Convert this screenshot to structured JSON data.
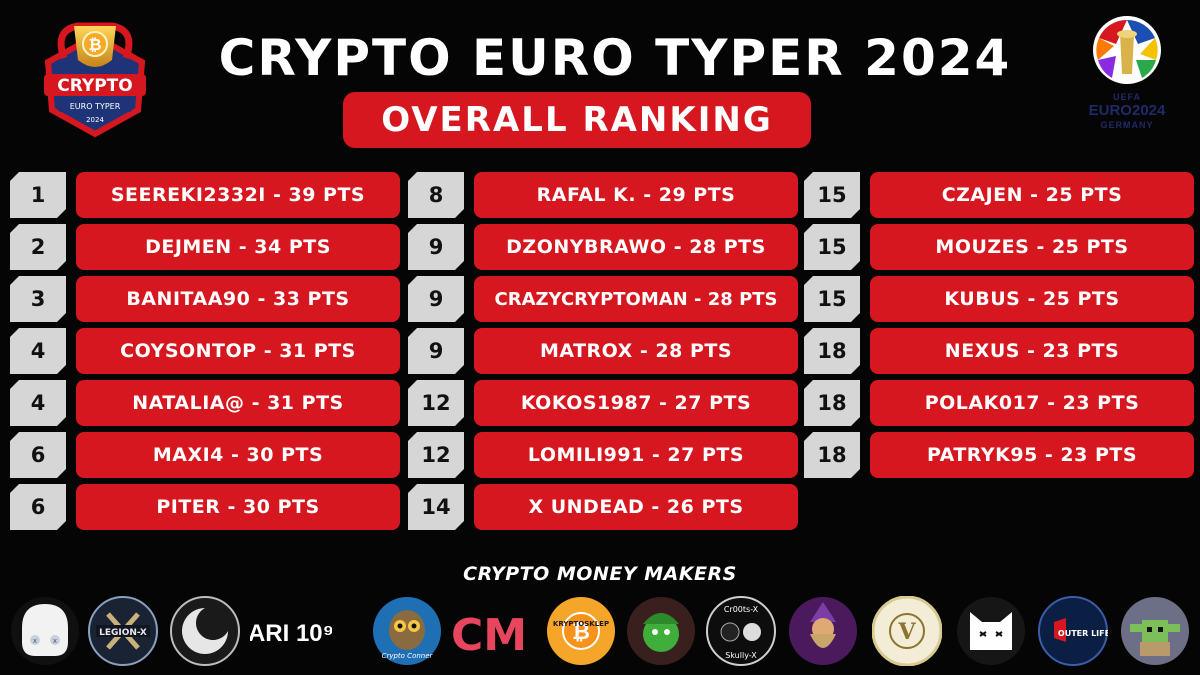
{
  "header": {
    "title": "CRYPTO EURO TYPER 2024",
    "subtitle": "OVERALL RANKING",
    "left_logo": {
      "icon": "crypto-euro-typer-trophy-logo",
      "text_main": "CRYPTO",
      "text_sub": "EURO TYPER",
      "year": "2024"
    },
    "right_logo": {
      "icon": "uefa-euro-2024-logo",
      "text_uefa": "UEFA",
      "text_euro": "EURO2024",
      "text_country": "GERMANY"
    }
  },
  "ranking": {
    "columns": [
      [
        {
          "rank": "1",
          "entry": "SEEREKI2332I - 39 PTS"
        },
        {
          "rank": "2",
          "entry": "DEJMEN - 34 PTS"
        },
        {
          "rank": "3",
          "entry": "BANITAA90 - 33 PTS"
        },
        {
          "rank": "4",
          "entry": "COYSONTOP - 31 PTS"
        },
        {
          "rank": "4",
          "entry": "NATALIA@ - 31 PTS"
        },
        {
          "rank": "6",
          "entry": "MAXI4 - 30 PTS"
        },
        {
          "rank": "6",
          "entry": "PITER - 30 PTS"
        }
      ],
      [
        {
          "rank": "8",
          "entry": "RAFAL K. - 29 PTS"
        },
        {
          "rank": "9",
          "entry": "DZONYBRAWO - 28 PTS"
        },
        {
          "rank": "9",
          "entry": "CRAZYCRYPTOMAN - 28 PTS"
        },
        {
          "rank": "9",
          "entry": "MATROX - 28 PTS"
        },
        {
          "rank": "12",
          "entry": "KOKOS1987 - 27 PTS"
        },
        {
          "rank": "12",
          "entry": "LOMILI991 - 27 PTS"
        },
        {
          "rank": "14",
          "entry": "X UNDEAD - 26 PTS"
        }
      ],
      [
        {
          "rank": "15",
          "entry": "CZAJEN - 25 PTS"
        },
        {
          "rank": "15",
          "entry": "MOUZES - 25 PTS"
        },
        {
          "rank": "15",
          "entry": "KUBUS - 25 PTS"
        },
        {
          "rank": "18",
          "entry": "NEXUS - 23 PTS"
        },
        {
          "rank": "18",
          "entry": "POLAK017 - 23 PTS"
        },
        {
          "rank": "18",
          "entry": "PATRYK95 - 23 PTS"
        }
      ]
    ]
  },
  "sponsors": {
    "title": "CRYPTO MONEY MAKERS",
    "items": [
      {
        "icon": "white-skull-logo"
      },
      {
        "icon": "legion-x-logo",
        "text": "LEGION-X"
      },
      {
        "icon": "crescent-ring-logo"
      },
      {
        "icon": "ari10-logo",
        "text": "ARI 10⁹"
      },
      {
        "icon": "crypto-conner-owl-logo",
        "text": "Crypto Conner"
      },
      {
        "icon": "cm-monster-logo",
        "text": "CM"
      },
      {
        "icon": "krypto-sklep-logo",
        "text": "KRYPTOSKLEP"
      },
      {
        "icon": "green-character-logo"
      },
      {
        "icon": "cr00ts-skully-logo",
        "text": "Cr00ts-X",
        "text2": "Skully-X"
      },
      {
        "icon": "bearded-wizard-logo"
      },
      {
        "icon": "veni-vidi-vici-logo",
        "text": "V"
      },
      {
        "icon": "white-cat-logo"
      },
      {
        "icon": "outer-life-logo",
        "text": "OUTER LIFE"
      },
      {
        "icon": "pixel-yoda-logo"
      }
    ]
  },
  "colors": {
    "background": "#050505",
    "accent_red": "#d6171f",
    "rank_tile": "#d6d6d6",
    "text": "#ffffff"
  }
}
